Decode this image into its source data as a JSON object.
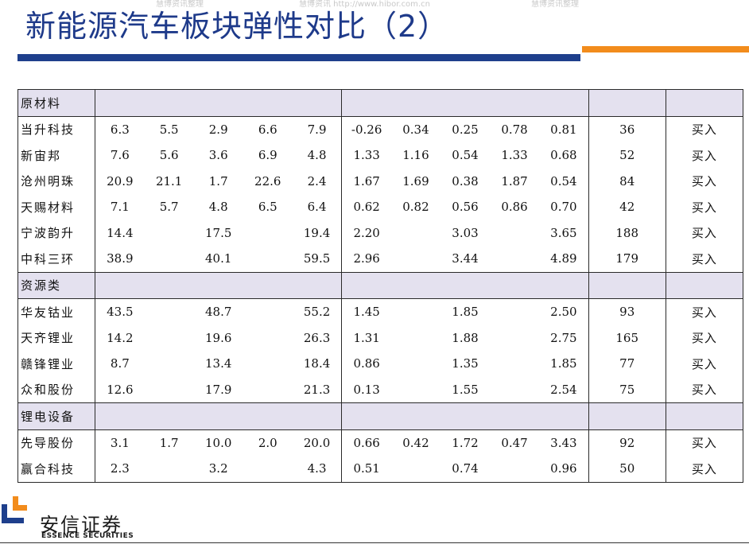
{
  "header": {
    "title": "新能源汽车板块弹性对比（2）",
    "watermarks": [
      "慧博资讯整理",
      "慧博资讯 http://www.hibor.com.cn",
      "慧博资讯整理"
    ]
  },
  "colors": {
    "title": "#1e3a8a",
    "bar_blue": "#1e3f8c",
    "bar_orange": "#f28c1c",
    "section_bg": "#e4e1ef"
  },
  "table": {
    "sections": [
      {
        "name": "原材料",
        "rows": [
          {
            "name": "当升科技",
            "v": [
              "6.3",
              "5.5",
              "2.9",
              "6.6",
              "7.9",
              "-0.26",
              "0.34",
              "0.25",
              "0.78",
              "0.81",
              "36"
            ],
            "rating": "买入"
          },
          {
            "name": "新宙邦",
            "v": [
              "7.6",
              "5.6",
              "3.6",
              "6.9",
              "4.8",
              "1.33",
              "1.16",
              "0.54",
              "1.33",
              "0.68",
              "52"
            ],
            "rating": "买入"
          },
          {
            "name": "沧州明珠",
            "v": [
              "20.9",
              "21.1",
              "1.7",
              "22.6",
              "2.4",
              "1.67",
              "1.69",
              "0.38",
              "1.87",
              "0.54",
              "84"
            ],
            "rating": "买入"
          },
          {
            "name": "天赐材料",
            "v": [
              "7.1",
              "5.7",
              "4.8",
              "6.5",
              "6.4",
              "0.62",
              "0.82",
              "0.56",
              "0.86",
              "0.70",
              "42"
            ],
            "rating": "买入"
          },
          {
            "name": "宁波韵升",
            "v": [
              "14.4",
              "",
              "17.5",
              "",
              "19.4",
              "2.20",
              "",
              "3.03",
              "",
              "3.65",
              "188"
            ],
            "rating": "买入"
          },
          {
            "name": "中科三环",
            "v": [
              "38.9",
              "",
              "40.1",
              "",
              "59.5",
              "2.96",
              "",
              "3.44",
              "",
              "4.89",
              "179"
            ],
            "rating": "买入"
          }
        ]
      },
      {
        "name": "资源类",
        "rows": [
          {
            "name": "华友钴业",
            "v": [
              "43.5",
              "",
              "48.7",
              "",
              "55.2",
              "1.45",
              "",
              "1.85",
              "",
              "2.50",
              "93"
            ],
            "rating": "买入"
          },
          {
            "name": "天齐锂业",
            "v": [
              "14.2",
              "",
              "19.6",
              "",
              "26.3",
              "1.31",
              "",
              "1.88",
              "",
              "2.75",
              "165"
            ],
            "rating": "买入"
          },
          {
            "name": "赣锋锂业",
            "v": [
              "8.7",
              "",
              "13.4",
              "",
              "18.4",
              "0.86",
              "",
              "1.35",
              "",
              "1.85",
              "77"
            ],
            "rating": "买入"
          },
          {
            "name": "众和股份",
            "v": [
              "12.6",
              "",
              "17.9",
              "",
              "21.3",
              "0.13",
              "",
              "1.55",
              "",
              "2.54",
              "75"
            ],
            "rating": "买入"
          }
        ]
      },
      {
        "name": "锂电设备",
        "rows": [
          {
            "name": "先导股份",
            "v": [
              "3.1",
              "1.7",
              "10.0",
              "2.0",
              "20.0",
              "0.66",
              "0.42",
              "1.72",
              "0.47",
              "3.43",
              "92"
            ],
            "rating": "买入"
          },
          {
            "name": "赢合科技",
            "v": [
              "2.3",
              "",
              "3.2",
              "",
              "4.3",
              "0.51",
              "",
              "0.74",
              "",
              "0.96",
              "50"
            ],
            "rating": "买入"
          }
        ]
      }
    ]
  },
  "footer": {
    "logo_cn": "安信证券",
    "logo_en": "ESSENCE SECURITIES",
    "logo_icon": "essence-logo-mark"
  }
}
